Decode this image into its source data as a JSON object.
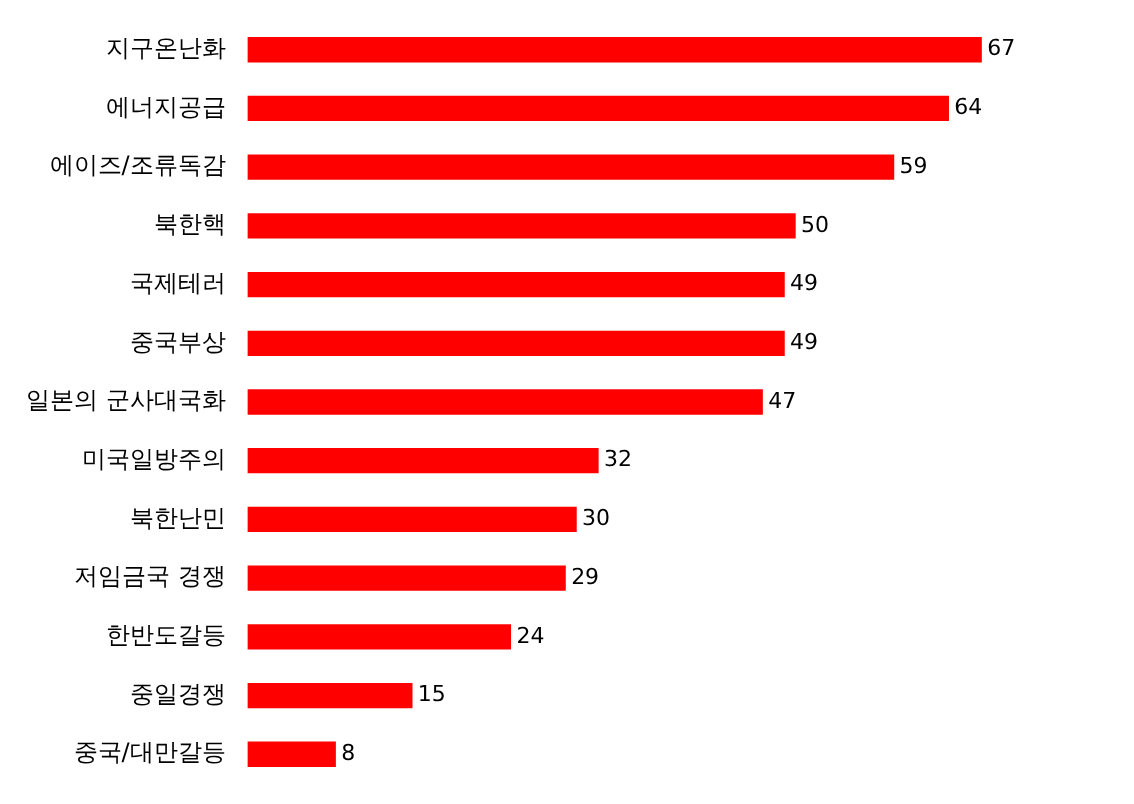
{
  "chart_data": {
    "type": "bar",
    "orientation": "horizontal",
    "categories": [
      "지구온난화",
      "에너지공급",
      "에이즈/조류독감",
      "북한핵",
      "국제테러",
      "중국부상",
      "일본의 군사대국화",
      "미국일방주의",
      "북한난민",
      "저임금국 경쟁",
      "한반도갈등",
      "중일경쟁",
      "중국/대만갈등"
    ],
    "values": [
      67,
      64,
      59,
      50,
      49,
      49,
      47,
      32,
      30,
      29,
      24,
      15,
      8
    ],
    "color": "#ff0000",
    "data_labels": true
  }
}
